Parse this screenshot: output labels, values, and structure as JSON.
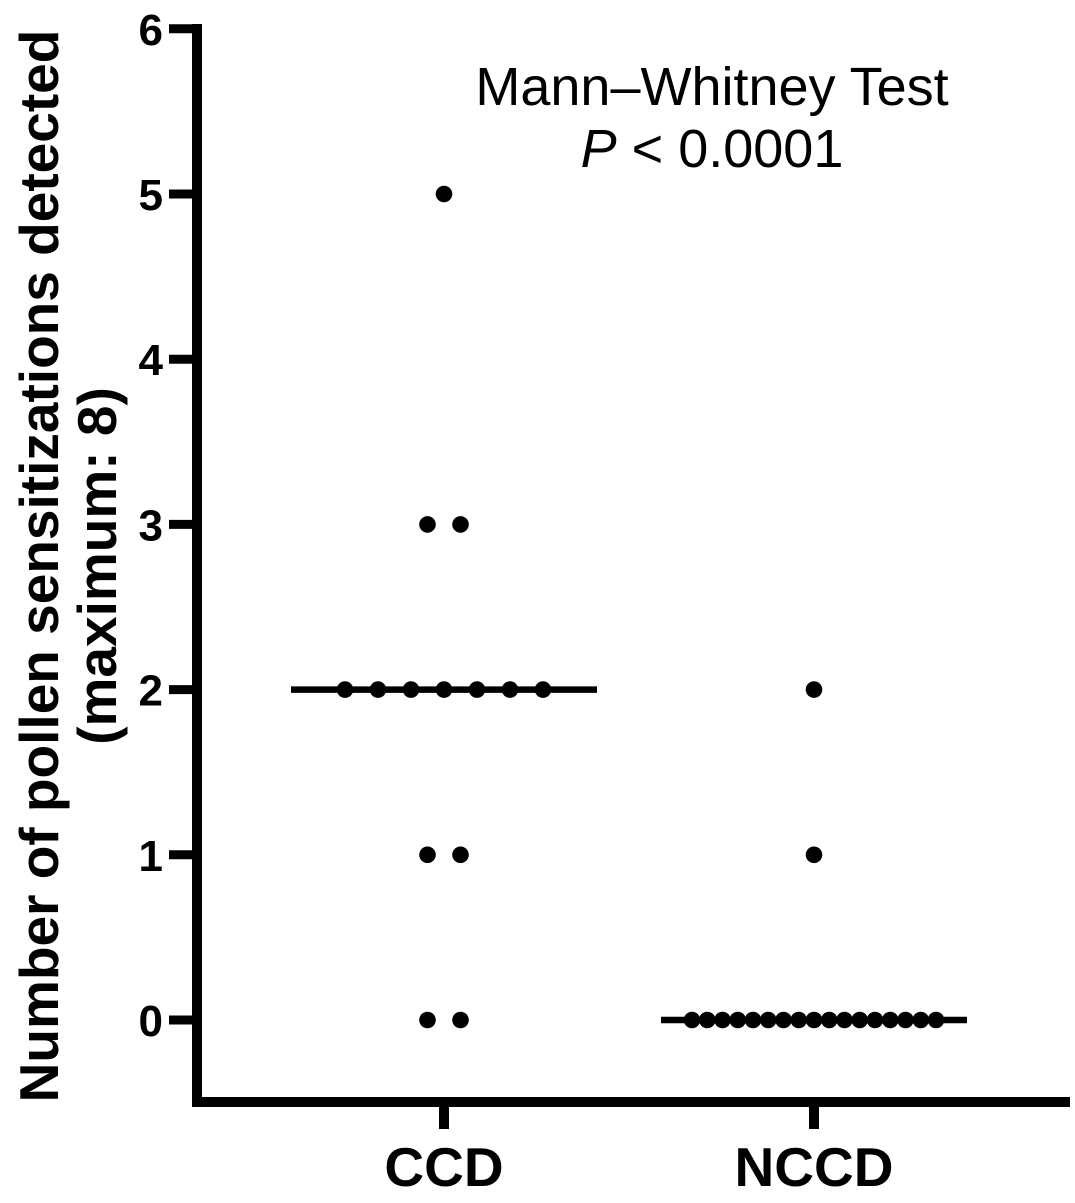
{
  "figure": {
    "background": "#ffffff",
    "foreground": "#000000",
    "annotation": {
      "line1": "Mann–Whitney Test",
      "p_symbol": "P",
      "p_rest": " < 0.0001"
    },
    "y_axis_title_line1": "Number of pollen sensitizations detected",
    "y_axis_title_line2": "(maximum: 8)"
  },
  "chart_data": {
    "type": "scatter",
    "subtype": "dot-plot-with-median-line",
    "title": "",
    "annotation": [
      "Mann–Whitney Test",
      "P < 0.0001"
    ],
    "xlabel": "",
    "ylabel": "Number of pollen sensitizations detected (maximum: 8)",
    "categories": [
      "CCD",
      "NCCD"
    ],
    "ylim": [
      0,
      6
    ],
    "yticks": [
      0,
      1,
      2,
      3,
      4,
      5,
      6
    ],
    "grid": false,
    "point_color": "#000000",
    "axis_color": "#000000",
    "median_line_color": "#000000",
    "series": [
      {
        "name": "CCD",
        "median": 2,
        "n": 14,
        "values": [
          5,
          3,
          3,
          2,
          2,
          2,
          2,
          2,
          2,
          2,
          1,
          1,
          0,
          0
        ],
        "value_counts": [
          {
            "value": 5,
            "count": 1
          },
          {
            "value": 3,
            "count": 2
          },
          {
            "value": 2,
            "count": 7
          },
          {
            "value": 1,
            "count": 2
          },
          {
            "value": 0,
            "count": 2
          }
        ]
      },
      {
        "name": "NCCD",
        "median": 0,
        "n": 19,
        "values": [
          2,
          1,
          0,
          0,
          0,
          0,
          0,
          0,
          0,
          0,
          0,
          0,
          0,
          0,
          0,
          0,
          0,
          0,
          0
        ],
        "value_counts": [
          {
            "value": 2,
            "count": 1
          },
          {
            "value": 1,
            "count": 1
          },
          {
            "value": 0,
            "count": 17
          }
        ]
      }
    ]
  }
}
